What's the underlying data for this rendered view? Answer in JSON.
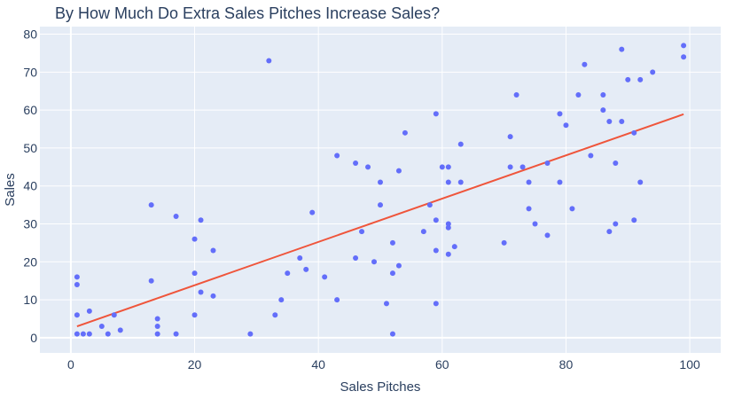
{
  "chart_data": {
    "type": "scatter",
    "title": "By How Much Do Extra Sales Pitches Increase Sales?",
    "xlabel": "Sales Pitches",
    "ylabel": "Sales",
    "xlim": [
      -5,
      105
    ],
    "ylim": [
      -4,
      82
    ],
    "xticks": [
      0,
      20,
      40,
      60,
      80,
      100
    ],
    "yticks": [
      0,
      10,
      20,
      30,
      40,
      50,
      60,
      70,
      80
    ],
    "grid": true,
    "colors": {
      "plot_bg": "#e5ecf6",
      "grid": "#ffffff",
      "points": "#636efa",
      "trendline": "#ef553b",
      "text": "#2a3f5f"
    },
    "points": [
      [
        1,
        16
      ],
      [
        1,
        14
      ],
      [
        1,
        6
      ],
      [
        1,
        1
      ],
      [
        2,
        1
      ],
      [
        3,
        7
      ],
      [
        3,
        1
      ],
      [
        5,
        3
      ],
      [
        6,
        1
      ],
      [
        7,
        6
      ],
      [
        8,
        2
      ],
      [
        13,
        35
      ],
      [
        13,
        15
      ],
      [
        14,
        5
      ],
      [
        14,
        3
      ],
      [
        14,
        1
      ],
      [
        17,
        32
      ],
      [
        17,
        1
      ],
      [
        20,
        26
      ],
      [
        20,
        17
      ],
      [
        20,
        6
      ],
      [
        21,
        31
      ],
      [
        21,
        12
      ],
      [
        23,
        23
      ],
      [
        23,
        11
      ],
      [
        29,
        1
      ],
      [
        32,
        73
      ],
      [
        33,
        6
      ],
      [
        34,
        10
      ],
      [
        35,
        17
      ],
      [
        37,
        21
      ],
      [
        38,
        18
      ],
      [
        39,
        33
      ],
      [
        41,
        16
      ],
      [
        43,
        48
      ],
      [
        43,
        10
      ],
      [
        46,
        46
      ],
      [
        46,
        21
      ],
      [
        47,
        28
      ],
      [
        48,
        45
      ],
      [
        49,
        20
      ],
      [
        50,
        41
      ],
      [
        50,
        35
      ],
      [
        51,
        9
      ],
      [
        52,
        25
      ],
      [
        52,
        17
      ],
      [
        52,
        1
      ],
      [
        53,
        44
      ],
      [
        53,
        19
      ],
      [
        54,
        54
      ],
      [
        57,
        28
      ],
      [
        58,
        35
      ],
      [
        59,
        59
      ],
      [
        59,
        31
      ],
      [
        59,
        23
      ],
      [
        59,
        9
      ],
      [
        60,
        45
      ],
      [
        61,
        45
      ],
      [
        61,
        41
      ],
      [
        61,
        30
      ],
      [
        61,
        29
      ],
      [
        61,
        22
      ],
      [
        62,
        24
      ],
      [
        63,
        51
      ],
      [
        63,
        41
      ],
      [
        70,
        25
      ],
      [
        71,
        53
      ],
      [
        71,
        45
      ],
      [
        72,
        64
      ],
      [
        73,
        45
      ],
      [
        74,
        41
      ],
      [
        74,
        34
      ],
      [
        75,
        30
      ],
      [
        77,
        46
      ],
      [
        77,
        27
      ],
      [
        79,
        59
      ],
      [
        79,
        41
      ],
      [
        80,
        56
      ],
      [
        81,
        34
      ],
      [
        82,
        64
      ],
      [
        83,
        72
      ],
      [
        84,
        48
      ],
      [
        86,
        64
      ],
      [
        86,
        60
      ],
      [
        87,
        57
      ],
      [
        87,
        28
      ],
      [
        88,
        46
      ],
      [
        88,
        30
      ],
      [
        89,
        76
      ],
      [
        89,
        57
      ],
      [
        90,
        68
      ],
      [
        91,
        54
      ],
      [
        91,
        31
      ],
      [
        92,
        68
      ],
      [
        92,
        41
      ],
      [
        94,
        70
      ],
      [
        99,
        77
      ],
      [
        99,
        74
      ]
    ],
    "trendline": {
      "x": [
        1,
        99
      ],
      "y": [
        3.0,
        58.9
      ]
    }
  }
}
